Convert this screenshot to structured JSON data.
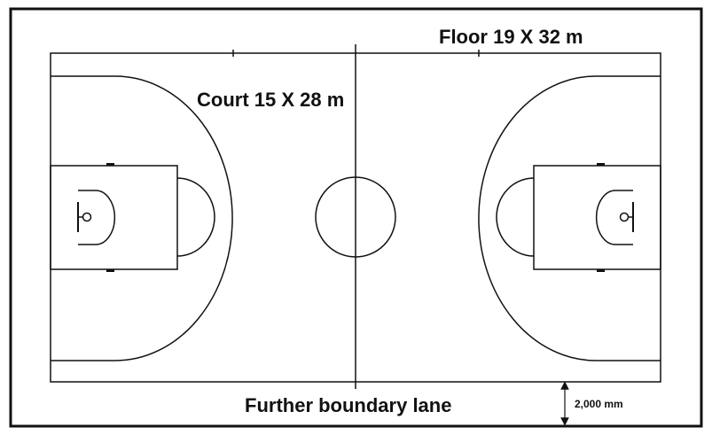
{
  "labels": {
    "floor": "Floor 19 X 32 m",
    "court": "Court 15 X 28 m",
    "boundary": "Further boundary lane",
    "dimension": "2,000 mm"
  },
  "colors": {
    "line": "#111111",
    "background": "#ffffff"
  }
}
